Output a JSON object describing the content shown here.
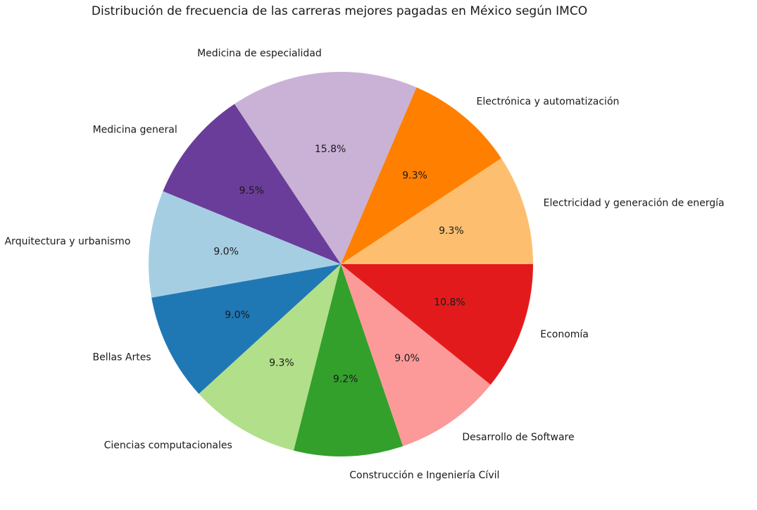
{
  "chart_data": {
    "type": "pie",
    "title": "Distribución de frecuencia de las carreras mejores pagadas en México según IMCO",
    "start_angle_deg": 0,
    "direction": "counterclockwise",
    "slices": [
      {
        "label": "Electricidad y generación de energía",
        "value": 9.3,
        "pct_label": "9.3%",
        "color": "#fdbf6f"
      },
      {
        "label": "Electrónica y automatización",
        "value": 9.3,
        "pct_label": "9.3%",
        "color": "#ff7f00"
      },
      {
        "label": "Medicina de especialidad",
        "value": 15.8,
        "pct_label": "15.8%",
        "color": "#cab2d6"
      },
      {
        "label": "Medicina general",
        "value": 9.5,
        "pct_label": "9.5%",
        "color": "#6a3d9a"
      },
      {
        "label": "Arquitectura y urbanismo",
        "value": 9.0,
        "pct_label": "9.0%",
        "color": "#a6cee3"
      },
      {
        "label": "Bellas Artes",
        "value": 9.0,
        "pct_label": "9.0%",
        "color": "#1f78b4"
      },
      {
        "label": "Ciencias computacionales",
        "value": 9.3,
        "pct_label": "9.3%",
        "color": "#b2df8a"
      },
      {
        "label": "Construcción e Ingeniería Cívil",
        "value": 9.2,
        "pct_label": "9.2%",
        "color": "#33a02c"
      },
      {
        "label": "Desarrollo de Software",
        "value": 9.0,
        "pct_label": "9.0%",
        "color": "#fb9a99"
      },
      {
        "label": "Economía",
        "value": 10.8,
        "pct_label": "10.8%",
        "color": "#e31a1c"
      }
    ]
  }
}
